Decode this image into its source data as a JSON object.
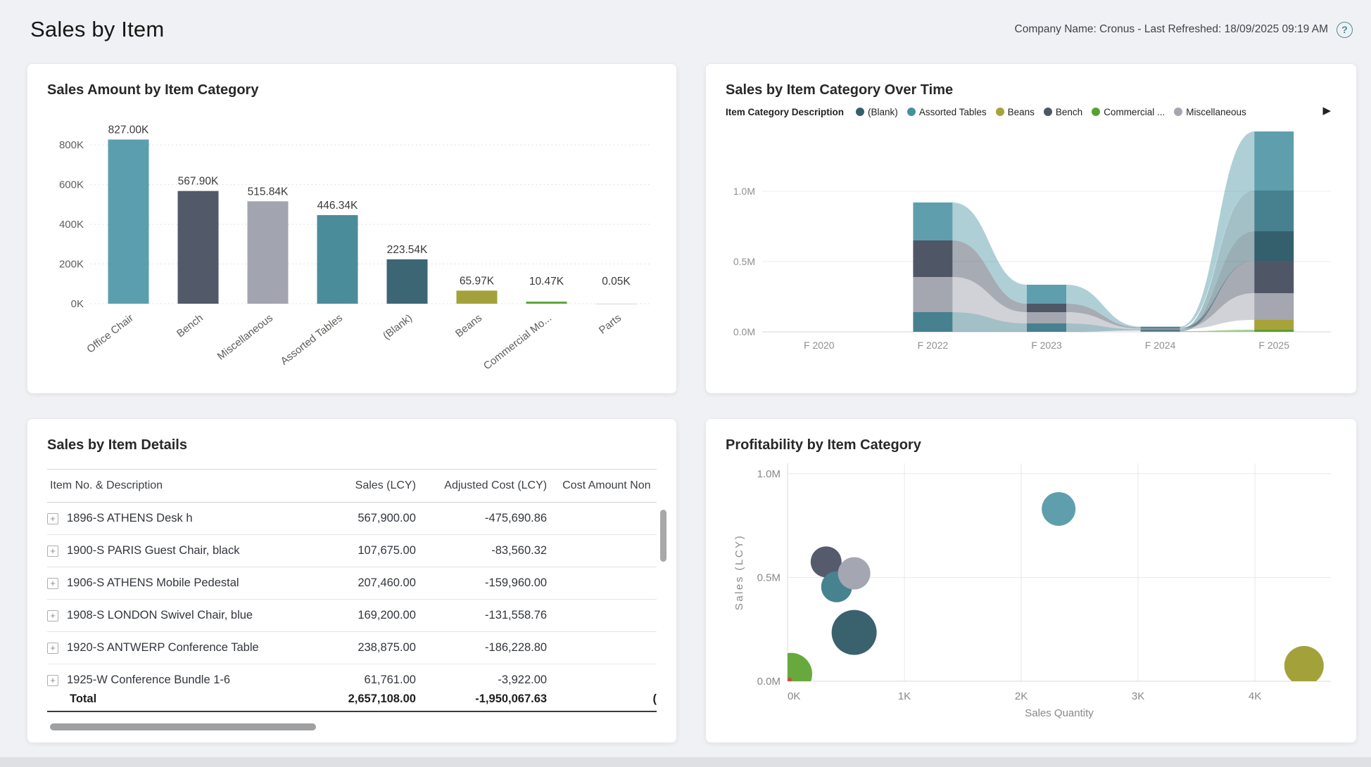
{
  "page": {
    "title": "Sales by Item",
    "meta": "Company Name: Cronus - Last Refreshed: 18/09/2025 09:19 AM",
    "help_glyph": "?"
  },
  "panels": {
    "bar": {
      "title": "Sales Amount by Item Category"
    },
    "ribbon": {
      "title": "Sales by Item Category Over Time",
      "legend_title": "Item Category Description",
      "legend_overflow_arrow": "▶",
      "legend_items": [
        {
          "label": "(Blank)",
          "color": "#33606c"
        },
        {
          "label": "Assorted Tables",
          "color": "#47919f"
        },
        {
          "label": "Beans",
          "color": "#a8a23b"
        },
        {
          "label": "Bench",
          "color": "#4f5767"
        },
        {
          "label": "Commercial ...",
          "color": "#57a22f"
        },
        {
          "label": "Miscellaneous",
          "color": "#a4a6b0"
        }
      ]
    },
    "table": {
      "title": "Sales by Item Details"
    },
    "bubble": {
      "title": "Profitability by Item Category"
    }
  },
  "chart_data": [
    {
      "id": "sales-amount-by-item-category",
      "type": "bar",
      "title": "Sales Amount by Item Category",
      "categories": [
        "Office Chair",
        "Bench",
        "Miscellaneous",
        "Assorted Tables",
        "(Blank)",
        "Beans",
        "Commercial Mo...",
        "Parts"
      ],
      "values_k": [
        827.0,
        567.9,
        515.84,
        446.34,
        223.54,
        65.97,
        10.47,
        0.05
      ],
      "value_labels": [
        "827.00K",
        "567.90K",
        "515.84K",
        "446.34K",
        "223.54K",
        "65.97K",
        "10.47K",
        "0.05K"
      ],
      "bar_colors": [
        "#5b9fae",
        "#525a69",
        "#a2a5b0",
        "#4b8c9b",
        "#3c6673",
        "#a3a23a",
        "#5ba63a",
        "#c0c3c8"
      ],
      "ytick_values_k": [
        0,
        200,
        400,
        600,
        800
      ],
      "ytick_labels": [
        "0K",
        "200K",
        "400K",
        "600K",
        "800K"
      ],
      "ylim_k": [
        0,
        850
      ],
      "grid": "dotted-horizontal",
      "legend_position": "none"
    },
    {
      "id": "sales-by-item-category-over-time",
      "type": "area",
      "subtype": "ribbon-stacked",
      "title": "Sales by Item Category Over Time",
      "x": [
        "F 2020",
        "F 2022",
        "F 2023",
        "F 2024",
        "F 2025"
      ],
      "series": [
        {
          "name": "Office Chair",
          "color": "#5f9fad",
          "values_m": [
            0,
            0.27,
            0.135,
            0.007,
            0.42
          ]
        },
        {
          "name": "Assorted Tables",
          "color": "#47818f",
          "values_m": [
            0,
            0.14,
            0.06,
            0.009,
            0.29
          ]
        },
        {
          "name": "(Blank)",
          "color": "#33606c",
          "values_m": [
            0,
            0,
            0,
            0.005,
            0.21
          ]
        },
        {
          "name": "Bench",
          "color": "#4f5767",
          "values_m": [
            0,
            0.26,
            0.06,
            0.006,
            0.23
          ]
        },
        {
          "name": "Miscellaneous",
          "color": "#a4a6b0",
          "values_m": [
            0,
            0.25,
            0.08,
            0.006,
            0.19
          ]
        },
        {
          "name": "Beans",
          "color": "#a8a23b",
          "values_m": [
            0,
            0,
            0,
            0,
            0.07
          ]
        },
        {
          "name": "Commercial ...",
          "color": "#57a22f",
          "values_m": [
            0,
            0,
            0,
            0.004,
            0.015
          ]
        }
      ],
      "stack_order_bottom_to_top_per_x": [
        [],
        [
          1,
          4,
          3,
          0
        ],
        [
          1,
          4,
          3,
          0
        ],
        [
          6,
          2,
          1,
          4,
          3,
          0
        ],
        [
          6,
          5,
          4,
          3,
          2,
          1,
          0
        ]
      ],
      "ytick_values_m": [
        0,
        0.5,
        1.0
      ],
      "ytick_labels": [
        "0.0M",
        "0.5M",
        "1.0M"
      ],
      "ylim_m": [
        0,
        1.45
      ],
      "legend_position": "top"
    },
    {
      "id": "profitability-by-item-category",
      "type": "scatter",
      "subtype": "bubble",
      "title": "Profitability by Item Category",
      "xlabel": "Sales Quantity",
      "ylabel": "Sales (LCY)",
      "points": [
        {
          "name": "Bench",
          "x_k": 0.33,
          "y_m": 0.575,
          "r": 22,
          "color": "#555b6d"
        },
        {
          "name": "Assorted Tables",
          "x_k": 0.42,
          "y_m": 0.455,
          "r": 22,
          "color": "#47828f"
        },
        {
          "name": "Miscellaneous",
          "x_k": 0.57,
          "y_m": 0.52,
          "r": 23,
          "color": "#a4a6b2"
        },
        {
          "name": "(Blank)",
          "x_k": 0.57,
          "y_m": 0.235,
          "r": 32,
          "color": "#3a626e"
        },
        {
          "name": "Office Chair",
          "x_k": 2.32,
          "y_m": 0.83,
          "r": 24,
          "color": "#5f9fad"
        },
        {
          "name": "Commercial ...",
          "x_k": 0.03,
          "y_m": 0.035,
          "r": 30,
          "color": "#67a93c"
        },
        {
          "name": "Beans",
          "x_k": 4.42,
          "y_m": 0.075,
          "r": 28,
          "color": "#a3a23a"
        },
        {
          "name": "Parts",
          "x_k": 0.015,
          "y_m": 0.004,
          "r": 4,
          "color": "#d14f3d"
        }
      ],
      "xtick_values_k": [
        0,
        1,
        2,
        3,
        4
      ],
      "xtick_labels": [
        "0K",
        "1K",
        "2K",
        "3K",
        "4K"
      ],
      "xlim_k": [
        0,
        4.65
      ],
      "ytick_values_m": [
        0,
        0.5,
        1.0
      ],
      "ytick_labels": [
        "0.0M",
        "0.5M",
        "1.0M"
      ],
      "ylim_m": [
        0,
        1.05
      ],
      "grid": "on",
      "legend_position": "none"
    }
  ],
  "table": {
    "columns": [
      "Item No. & Description",
      "Sales (LCY)",
      "Adjusted Cost (LCY)",
      "Cost Amount Non"
    ],
    "expand_glyph": "+",
    "rows": [
      {
        "item": "1896-S ATHENS Desk h",
        "sales": "567,900.00",
        "adjusted_cost": "-475,690.86"
      },
      {
        "item": "1900-S PARIS Guest Chair, black",
        "sales": "107,675.00",
        "adjusted_cost": "-83,560.32"
      },
      {
        "item": "1906-S ATHENS Mobile Pedestal",
        "sales": "207,460.00",
        "adjusted_cost": "-159,960.00"
      },
      {
        "item": "1908-S LONDON Swivel Chair, blue",
        "sales": "169,200.00",
        "adjusted_cost": "-131,558.76"
      },
      {
        "item": "1920-S ANTWERP Conference Table",
        "sales": "238,875.00",
        "adjusted_cost": "-186,228.80"
      },
      {
        "item": "1925-W Conference Bundle 1-6",
        "sales": "61,761.00",
        "adjusted_cost": "-3,922.00"
      }
    ],
    "total": {
      "label": "Total",
      "sales": "2,657,108.00",
      "adjusted_cost": "-1,950,067.63",
      "cost_amount_partial": "("
    }
  }
}
